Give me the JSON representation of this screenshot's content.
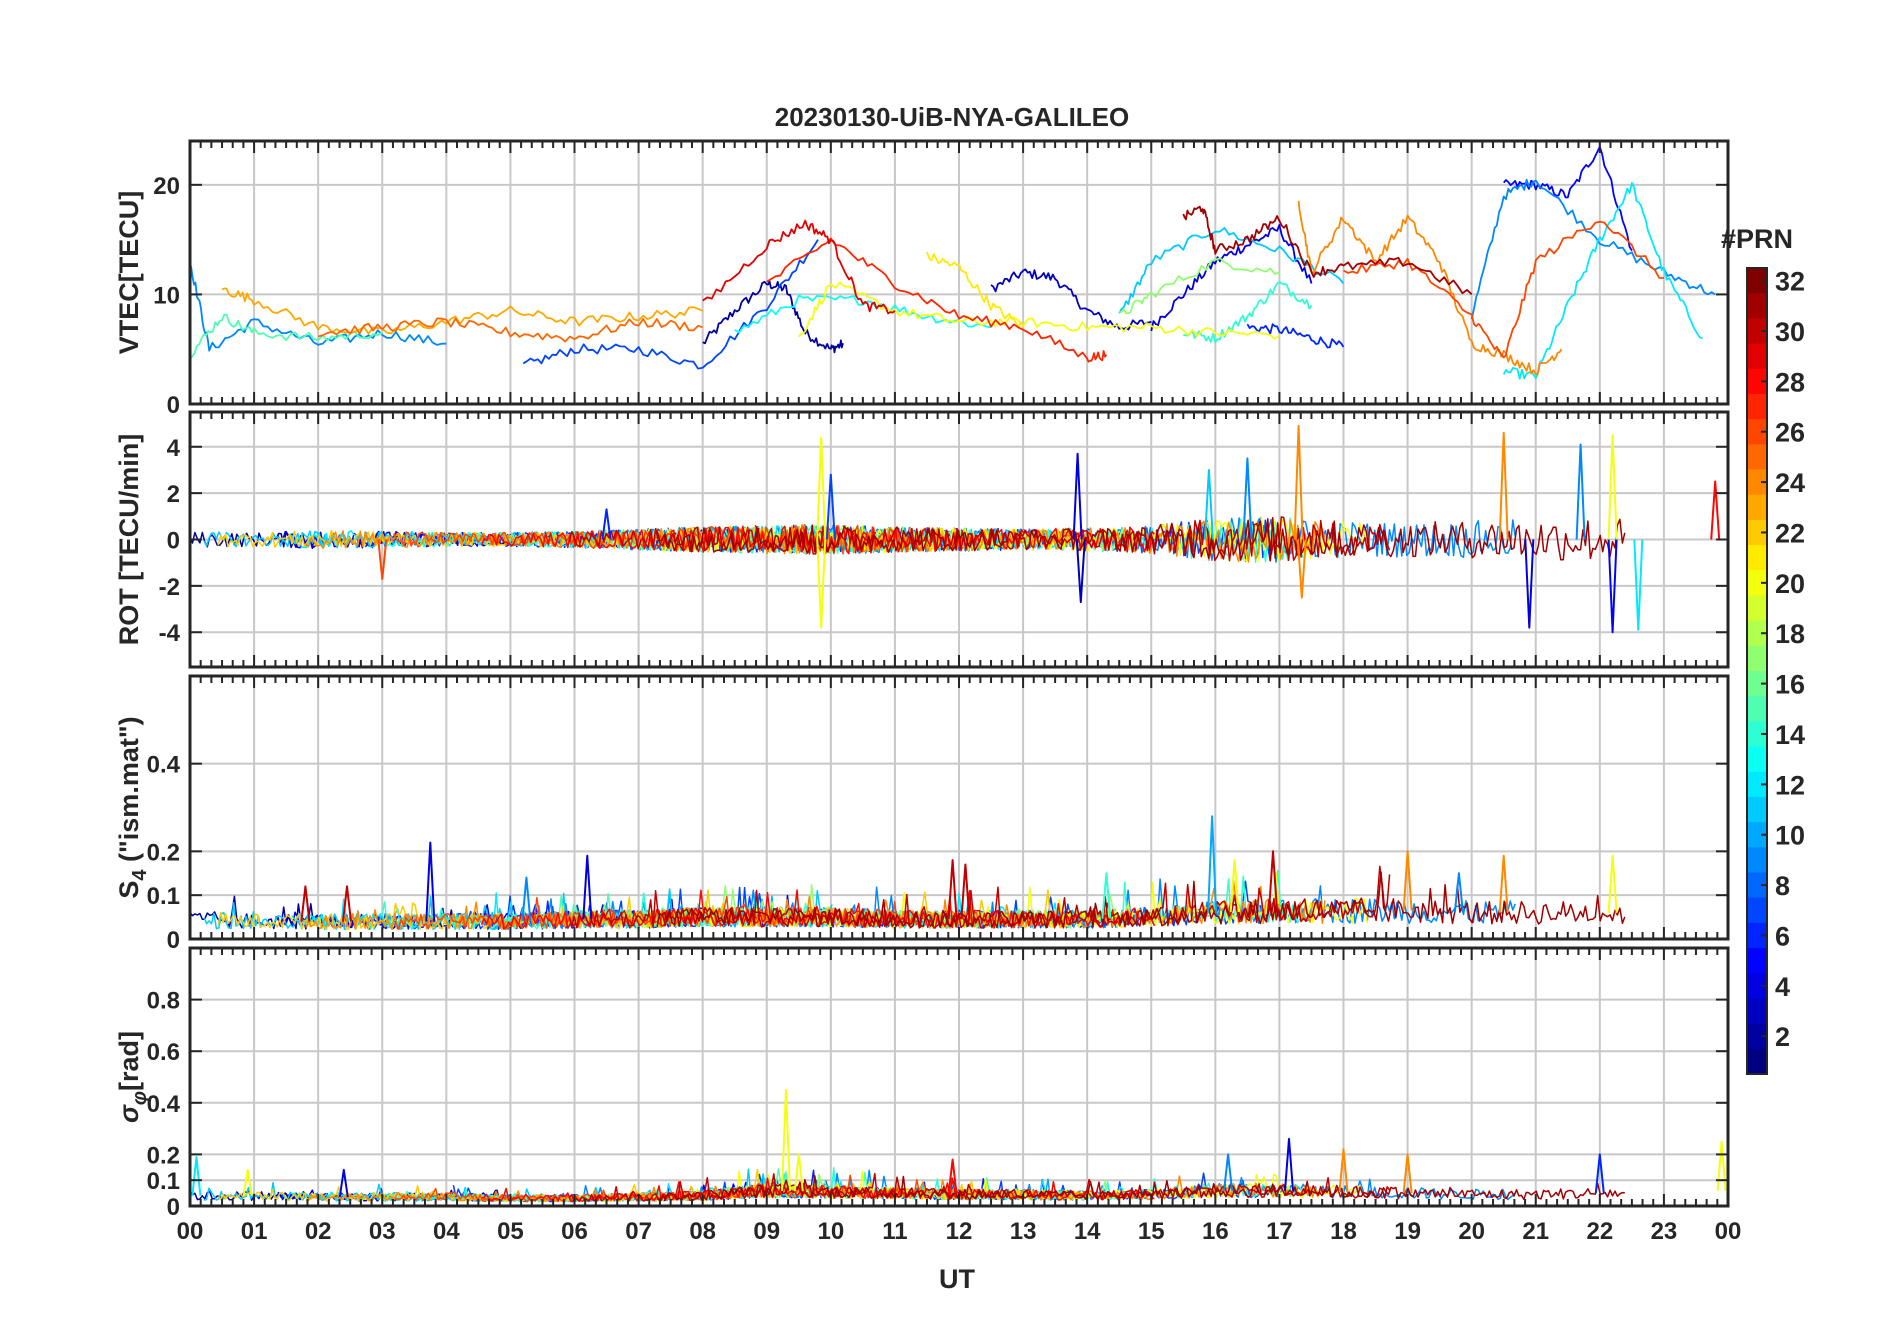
{
  "chart_data": {
    "type": "line",
    "title": "20230130-UiB-NYA-GALILEO",
    "xlabel": "UT",
    "x_ticks": [
      "00",
      "01",
      "02",
      "03",
      "04",
      "05",
      "06",
      "07",
      "08",
      "09",
      "10",
      "11",
      "12",
      "13",
      "14",
      "15",
      "16",
      "17",
      "18",
      "19",
      "20",
      "21",
      "22",
      "23",
      "00"
    ],
    "xlim_hours": [
      0,
      24
    ],
    "grid": true,
    "colorbar": {
      "label": "#PRN",
      "colormap": "jet",
      "range": [
        1,
        32
      ],
      "ticks": [
        2,
        4,
        6,
        8,
        10,
        12,
        14,
        16,
        18,
        20,
        22,
        24,
        26,
        28,
        30,
        32
      ],
      "colors": [
        "#00007f",
        "#0000ff",
        "#007fff",
        "#00ffff",
        "#7fff7f",
        "#ffff00",
        "#ff7f00",
        "#ff0000",
        "#7f0000"
      ]
    },
    "panels": [
      {
        "id": "vtec",
        "ylabel": "VTEC[TECU]",
        "ylim": [
          0,
          24
        ],
        "y_ticks": [
          0,
          10,
          20
        ],
        "series": [
          {
            "prn": 2,
            "x": [
              8.0,
              8.5,
              9.0,
              9.3,
              9.6,
              10.0,
              10.2
            ],
            "y": [
              5.5,
              8.5,
              11.0,
              10.5,
              6.5,
              5.0,
              5.5
            ]
          },
          {
            "prn": 3,
            "x": [
              12.5,
              13.0,
              13.5,
              14.0,
              14.5,
              15.0
            ],
            "y": [
              10.5,
              12.0,
              11.5,
              8.5,
              7.0,
              7.5
            ]
          },
          {
            "prn": 4,
            "x": [
              15.0,
              15.5,
              16.0,
              16.5,
              17.0,
              17.5
            ],
            "y": [
              7.0,
              10.0,
              13.0,
              14.5,
              16.0,
              11.0
            ]
          },
          {
            "prn": 5,
            "x": [
              20.5,
              21.0,
              21.5,
              22.0,
              22.5
            ],
            "y": [
              20.0,
              20.0,
              19.0,
              23.5,
              14.0
            ]
          },
          {
            "prn": 6,
            "x": [
              16.5,
              17.0,
              17.5,
              18.0
            ],
            "y": [
              7.0,
              6.8,
              6.0,
              5.2
            ]
          },
          {
            "prn": 7,
            "x": [
              5.2,
              6.0,
              7.0,
              8.0,
              9.0,
              9.8
            ],
            "y": [
              3.5,
              5.0,
              5.0,
              3.5,
              9.0,
              15.0
            ]
          },
          {
            "prn": 9,
            "x": [
              0.0,
              0.3,
              1.0,
              2.0,
              3.0,
              4.0
            ],
            "y": [
              13.0,
              5.0,
              7.5,
              5.5,
              6.5,
              5.5
            ]
          },
          {
            "prn": 9,
            "x": [
              20.0,
              20.5,
              21.0,
              22.0,
              23.0,
              23.8
            ],
            "y": [
              8.0,
              19.0,
              20.5,
              15.0,
              12.0,
              10.0
            ]
          },
          {
            "prn": 11,
            "x": [
              14.5,
              15.0,
              16.0,
              17.0,
              18.0
            ],
            "y": [
              8.0,
              13.0,
              16.0,
              14.0,
              11.0
            ]
          },
          {
            "prn": 12,
            "x": [
              20.5,
              21.0,
              21.5,
              22.0,
              22.5,
              23.0,
              23.6
            ],
            "y": [
              3.0,
              2.5,
              9.0,
              15.0,
              20.0,
              12.0,
              6.0
            ]
          },
          {
            "prn": 13,
            "x": [
              8.5,
              9.5,
              10.5,
              11.5,
              12.5
            ],
            "y": [
              6.5,
              9.5,
              9.5,
              8.0,
              7.0
            ]
          },
          {
            "prn": 14,
            "x": [
              15.5,
              16.0,
              16.5,
              17.0,
              17.5
            ],
            "y": [
              6.5,
              6.0,
              8.0,
              11.0,
              9.0
            ]
          },
          {
            "prn": 15,
            "x": [
              0.0,
              0.5,
              1.0,
              2.0,
              3.0
            ],
            "y": [
              4.5,
              8.0,
              6.5,
              6.0,
              6.5
            ]
          },
          {
            "prn": 17,
            "x": [
              14.5,
              15.0,
              16.0,
              17.0
            ],
            "y": [
              8.0,
              10.0,
              13.0,
              12.0
            ]
          },
          {
            "prn": 20,
            "x": [
              9.5,
              10.0,
              11.0,
              12.0,
              13.0,
              14.0,
              15.0,
              16.0,
              17.0
            ],
            "y": [
              6.0,
              11.0,
              8.5,
              7.5,
              7.5,
              7.0,
              7.0,
              6.5,
              6.3
            ]
          },
          {
            "prn": 21,
            "x": [
              11.5,
              12.0,
              12.5,
              13.0
            ],
            "y": [
              13.5,
              12.5,
              9.0,
              7.0
            ]
          },
          {
            "prn": 23,
            "x": [
              0.5,
              1.0,
              2.0,
              3.0,
              4.0,
              5.0,
              6.0,
              7.0,
              8.0
            ],
            "y": [
              10.5,
              9.5,
              7.0,
              6.5,
              7.5,
              8.5,
              7.5,
              8.0,
              8.5
            ]
          },
          {
            "prn": 24,
            "x": [
              17.3,
              17.5,
              18.0,
              18.5,
              19.0,
              19.5,
              20.0,
              20.5,
              21.0,
              21.4
            ],
            "y": [
              18.5,
              12.0,
              17.0,
              13.0,
              17.0,
              13.0,
              5.5,
              4.5,
              3.0,
              5.0
            ]
          },
          {
            "prn": 25,
            "x": [
              2.0,
              3.0,
              4.0,
              5.0,
              6.0,
              7.0,
              8.0
            ],
            "y": [
              6.5,
              7.0,
              7.5,
              6.5,
              6.0,
              7.5,
              7.0
            ]
          },
          {
            "prn": 26,
            "x": [
              18.0,
              19.0,
              20.0,
              20.5,
              21.0,
              22.0,
              23.0
            ],
            "y": [
              12.0,
              13.0,
              8.0,
              4.0,
              13.0,
              17.0,
              11.5
            ]
          },
          {
            "prn": 27,
            "x": [
              9.0,
              10.0,
              11.0,
              12.0,
              13.0,
              14.0,
              14.3
            ],
            "y": [
              11.0,
              15.0,
              11.0,
              8.0,
              7.0,
              4.2,
              4.5
            ]
          },
          {
            "prn": 29,
            "x": [
              8.0,
              9.0,
              9.6,
              10.0,
              10.5,
              11.0
            ],
            "y": [
              9.0,
              14.5,
              16.5,
              15.0,
              9.0,
              8.5
            ]
          },
          {
            "prn": 31,
            "x": [
              15.5,
              15.8,
              16.0,
              16.5,
              17.0,
              17.5,
              18.0,
              19.0,
              20.0
            ],
            "y": [
              17.0,
              18.0,
              14.0,
              15.0,
              17.0,
              12.0,
              12.5,
              13.0,
              10.0
            ]
          }
        ]
      },
      {
        "id": "rot",
        "ylabel": "ROT [TECU/min]",
        "ylim": [
          -5.5,
          5.5
        ],
        "y_ticks": [
          -4,
          -2,
          0,
          2,
          4
        ],
        "noise_amplitude": [
          0.35,
          0.3,
          0.4,
          0.35,
          0.3,
          0.3,
          0.35,
          0.45,
          0.55,
          0.6,
          0.65,
          0.55,
          0.5,
          0.45,
          0.5,
          0.6,
          0.95,
          1.0,
          0.8,
          0.75,
          0.8,
          0.9,
          1.0,
          0.8,
          0.6
        ],
        "spikes": [
          {
            "hour": 9.85,
            "value": 4.4,
            "prn": 20
          },
          {
            "hour": 9.85,
            "value": -3.8,
            "prn": 20
          },
          {
            "hour": 10.0,
            "value": 2.8,
            "prn": 7
          },
          {
            "hour": 13.85,
            "value": 3.7,
            "prn": 4
          },
          {
            "hour": 13.9,
            "value": -2.7,
            "prn": 3
          },
          {
            "hour": 15.9,
            "value": 3.0,
            "prn": 11
          },
          {
            "hour": 16.5,
            "value": 3.5,
            "prn": 9
          },
          {
            "hour": 17.3,
            "value": 4.9,
            "prn": 24
          },
          {
            "hour": 17.35,
            "value": -2.5,
            "prn": 24
          },
          {
            "hour": 20.5,
            "value": 4.6,
            "prn": 24
          },
          {
            "hour": 20.9,
            "value": -3.8,
            "prn": 4
          },
          {
            "hour": 21.7,
            "value": 4.1,
            "prn": 9
          },
          {
            "hour": 22.2,
            "value": 4.5,
            "prn": 20
          },
          {
            "hour": 22.2,
            "value": -4.0,
            "prn": 5
          },
          {
            "hour": 22.6,
            "value": -3.9,
            "prn": 12
          },
          {
            "hour": 23.8,
            "value": 2.5,
            "prn": 28
          },
          {
            "hour": 6.5,
            "value": 1.3,
            "prn": 6
          },
          {
            "hour": 3.0,
            "value": -1.7,
            "prn": 26
          }
        ]
      },
      {
        "id": "s4",
        "ylabel": "S4 (\"ism.mat\")",
        "ylim": [
          0,
          0.6
        ],
        "y_ticks": [
          0,
          0.1,
          0.2,
          0.4
        ],
        "baseline": [
          0.045,
          0.04,
          0.04,
          0.04,
          0.04,
          0.04,
          0.045,
          0.045,
          0.05,
          0.05,
          0.05,
          0.045,
          0.045,
          0.045,
          0.045,
          0.05,
          0.06,
          0.065,
          0.065,
          0.065,
          0.06,
          0.06,
          0.06,
          0.055,
          0.05
        ],
        "spikes": [
          {
            "hour": 3.75,
            "value": 0.22,
            "prn": 4
          },
          {
            "hour": 6.2,
            "value": 0.19,
            "prn": 4
          },
          {
            "hour": 5.25,
            "value": 0.14,
            "prn": 9
          },
          {
            "hour": 2.45,
            "value": 0.12,
            "prn": 30
          },
          {
            "hour": 1.8,
            "value": 0.12,
            "prn": 30
          },
          {
            "hour": 11.9,
            "value": 0.18,
            "prn": 30
          },
          {
            "hour": 12.1,
            "value": 0.17,
            "prn": 30
          },
          {
            "hour": 15.95,
            "value": 0.28,
            "prn": 10
          },
          {
            "hour": 16.3,
            "value": 0.18,
            "prn": 20
          },
          {
            "hour": 16.9,
            "value": 0.2,
            "prn": 30
          },
          {
            "hour": 19.0,
            "value": 0.2,
            "prn": 24
          },
          {
            "hour": 20.5,
            "value": 0.19,
            "prn": 24
          },
          {
            "hour": 19.8,
            "value": 0.15,
            "prn": 9
          },
          {
            "hour": 22.2,
            "value": 0.19,
            "prn": 20
          },
          {
            "hour": 14.3,
            "value": 0.15,
            "prn": 14
          }
        ]
      },
      {
        "id": "sigma_phi",
        "ylabel": "σφ[rad]",
        "ylim": [
          0,
          1.0
        ],
        "y_ticks": [
          0,
          0.1,
          0.2,
          0.4,
          0.6,
          0.8
        ],
        "baseline": [
          0.04,
          0.04,
          0.035,
          0.035,
          0.035,
          0.03,
          0.03,
          0.035,
          0.04,
          0.06,
          0.055,
          0.05,
          0.045,
          0.045,
          0.04,
          0.045,
          0.06,
          0.06,
          0.055,
          0.05,
          0.045,
          0.045,
          0.05,
          0.05,
          0.06
        ],
        "spikes": [
          {
            "hour": 9.3,
            "value": 0.45,
            "prn": 20
          },
          {
            "hour": 9.5,
            "value": 0.2,
            "prn": 20
          },
          {
            "hour": 11.9,
            "value": 0.18,
            "prn": 28
          },
          {
            "hour": 17.15,
            "value": 0.26,
            "prn": 4
          },
          {
            "hour": 18.0,
            "value": 0.22,
            "prn": 24
          },
          {
            "hour": 19.0,
            "value": 0.2,
            "prn": 24
          },
          {
            "hour": 16.2,
            "value": 0.2,
            "prn": 9
          },
          {
            "hour": 22.0,
            "value": 0.2,
            "prn": 6
          },
          {
            "hour": 2.4,
            "value": 0.14,
            "prn": 4
          },
          {
            "hour": 0.9,
            "value": 0.14,
            "prn": 20
          },
          {
            "hour": 0.1,
            "value": 0.19,
            "prn": 12
          },
          {
            "hour": 23.9,
            "value": 0.25,
            "prn": 20
          }
        ]
      }
    ]
  }
}
